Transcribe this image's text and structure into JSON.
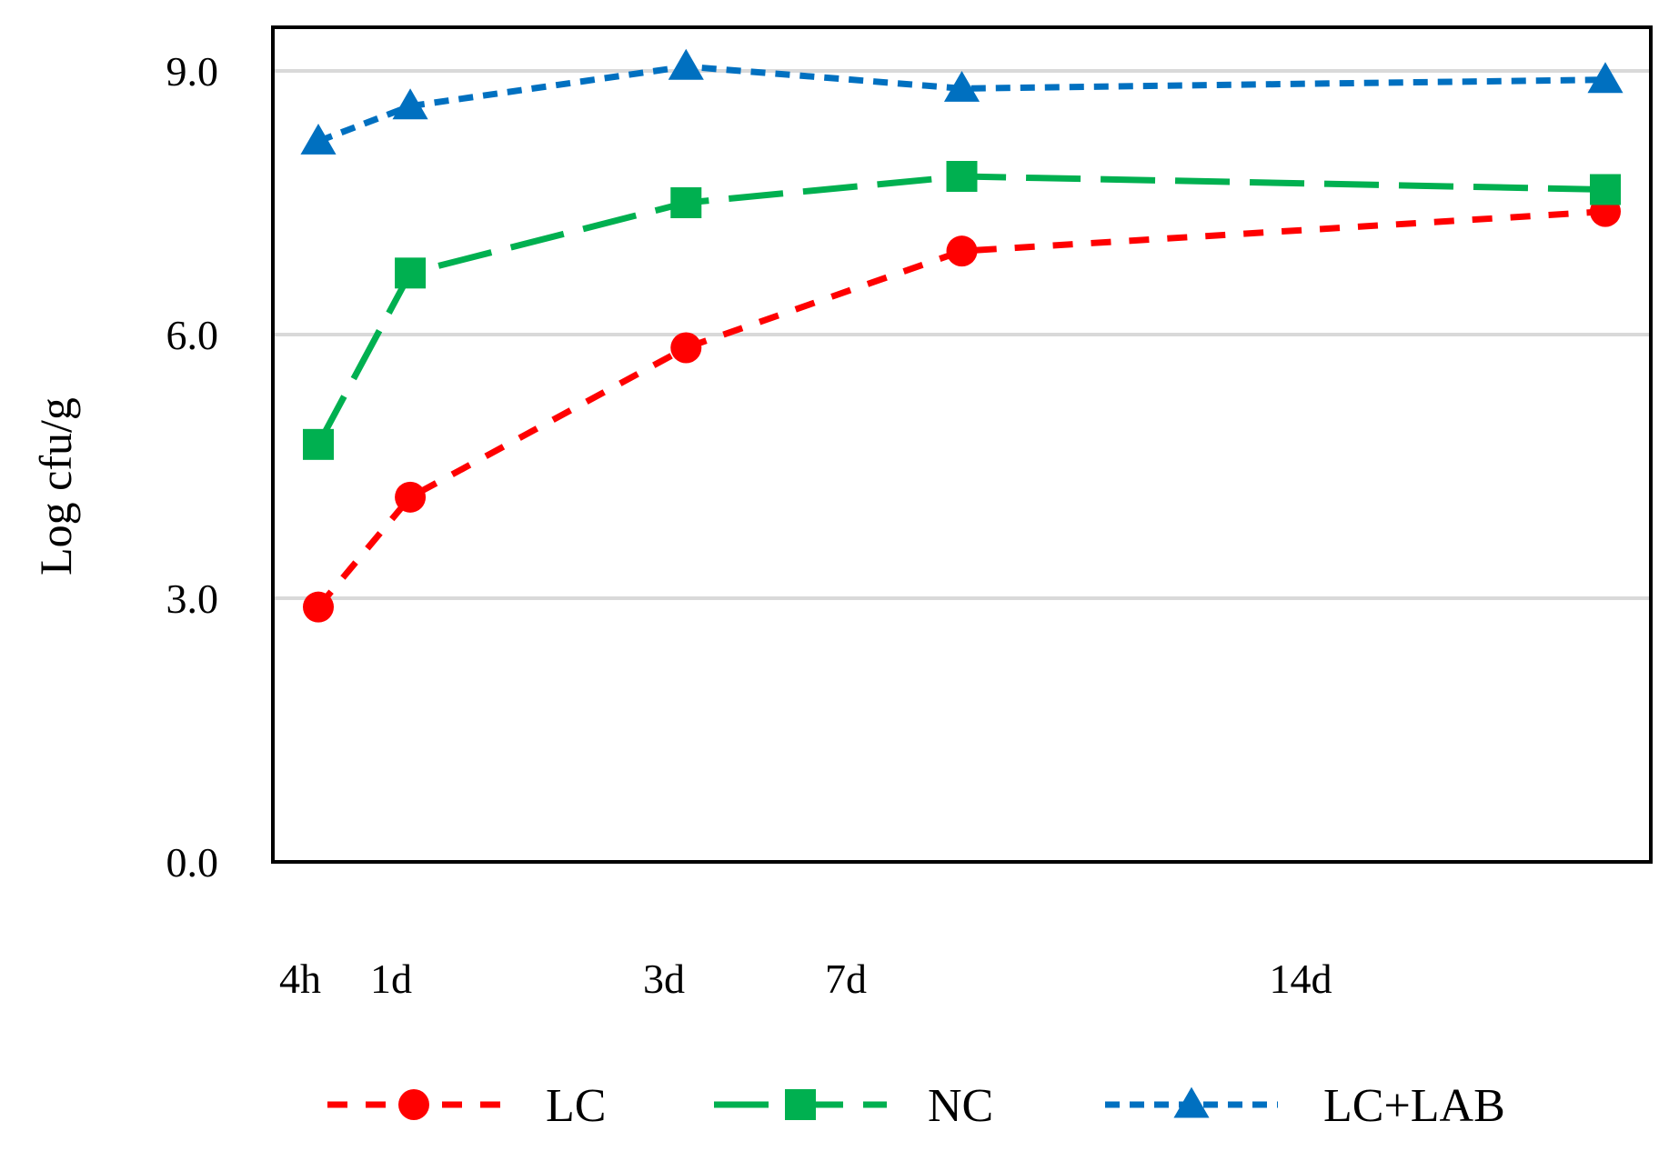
{
  "chart_data": {
    "type": "line",
    "title": "",
    "xlabel": "",
    "ylabel": "Log cfu/g",
    "ylim": [
      0,
      9.0
    ],
    "yticks": [
      "0.0",
      "3.0",
      "6.0",
      "9.0"
    ],
    "grid": true,
    "legend_position": "bottom",
    "x_tick_labels": [
      {
        "label": "4h",
        "day": 0
      },
      {
        "label": "1d",
        "day": 1
      },
      {
        "label": "3d",
        "day": 4
      },
      {
        "label": "7d",
        "day": 6
      },
      {
        "label": "14d",
        "day": 11
      }
    ],
    "x": [
      0,
      1,
      4,
      7,
      14
    ],
    "series": [
      {
        "name": "LC",
        "color": "#ff0000",
        "dash": "dash",
        "marker": "circle",
        "values": [
          2.9,
          4.15,
          5.85,
          6.95,
          7.4
        ]
      },
      {
        "name": "NC",
        "color": "#00b050",
        "dash": "long-dash",
        "marker": "square",
        "values": [
          4.75,
          6.7,
          7.5,
          7.8,
          7.65
        ]
      },
      {
        "name": "LC+LAB",
        "color": "#0070c0",
        "dash": "short-dash",
        "marker": "triangle",
        "values": [
          8.2,
          8.6,
          9.05,
          8.8,
          8.9
        ]
      }
    ]
  }
}
